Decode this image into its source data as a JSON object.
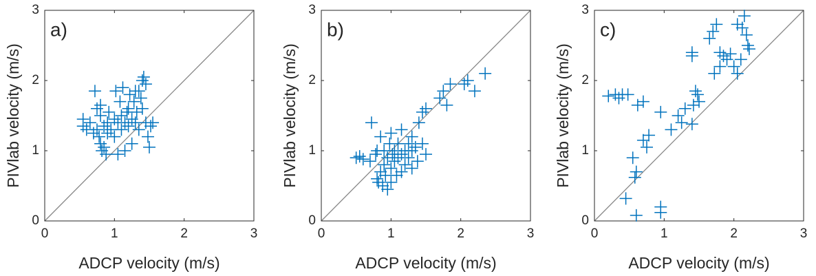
{
  "chart_data": [
    {
      "type": "scatter",
      "panel_label": "a)",
      "x_label": "ADCP velocity (m/s)",
      "y_label": "PIVlab velocity (m/s)",
      "color": "#0072BD",
      "marker": "+",
      "xlim": [
        0,
        3
      ],
      "ylim": [
        0,
        3
      ],
      "xticks": [
        0,
        1,
        2,
        3
      ],
      "yticks": [
        0,
        1,
        2,
        3
      ],
      "x": [
        0.55,
        0.55,
        0.6,
        0.65,
        0.7,
        0.72,
        0.75,
        0.75,
        0.78,
        0.8,
        0.8,
        0.8,
        0.82,
        0.85,
        0.85,
        0.88,
        0.9,
        0.9,
        0.92,
        0.95,
        1.0,
        1.0,
        1.02,
        1.05,
        1.05,
        1.08,
        1.1,
        1.1,
        1.12,
        1.15,
        1.15,
        1.18,
        1.2,
        1.2,
        1.22,
        1.25,
        1.25,
        1.28,
        1.3,
        1.3,
        1.32,
        1.35,
        1.38,
        1.4,
        1.42,
        1.45,
        1.45,
        1.48,
        1.5,
        1.52,
        1.55,
        1.35,
        1.4
      ],
      "y": [
        1.35,
        1.45,
        1.3,
        1.4,
        1.25,
        1.85,
        1.6,
        1.3,
        1.2,
        1.5,
        1.1,
        1.65,
        1.0,
        1.35,
        1.05,
        0.95,
        1.4,
        1.25,
        1.55,
        1.3,
        1.45,
        1.2,
        1.85,
        1.4,
        0.95,
        1.7,
        1.5,
        1.3,
        1.9,
        1.4,
        1.0,
        1.55,
        1.6,
        1.35,
        1.8,
        1.45,
        1.1,
        1.7,
        1.85,
        1.4,
        1.55,
        1.3,
        1.75,
        2.0,
        2.05,
        1.95,
        1.4,
        1.2,
        1.05,
        1.35,
        1.4,
        1.85,
        1.6
      ]
    },
    {
      "type": "scatter",
      "panel_label": "b)",
      "x_label": "ADCP velocity (m/s)",
      "y_label": "PIVlab velocity (m/s)",
      "color": "#0072BD",
      "marker": "+",
      "xlim": [
        0,
        3
      ],
      "ylim": [
        0,
        3
      ],
      "xticks": [
        0,
        1,
        2,
        3
      ],
      "yticks": [
        0,
        1,
        2,
        3
      ],
      "x": [
        0.5,
        0.55,
        0.6,
        0.7,
        0.72,
        0.78,
        0.8,
        0.8,
        0.82,
        0.85,
        0.85,
        0.88,
        0.9,
        0.9,
        0.92,
        0.95,
        0.95,
        0.98,
        1.0,
        1.0,
        1.02,
        1.05,
        1.05,
        1.08,
        1.1,
        1.1,
        1.15,
        1.15,
        1.2,
        1.2,
        1.25,
        1.25,
        1.3,
        1.3,
        1.3,
        1.35,
        1.38,
        1.4,
        1.45,
        1.45,
        1.5,
        1.5,
        1.7,
        1.75,
        1.8,
        1.85,
        2.05,
        2.1,
        2.2,
        2.35,
        1.0,
        1.15
      ],
      "y": [
        0.9,
        0.92,
        0.88,
        0.85,
        1.4,
        0.95,
        1.0,
        0.6,
        0.55,
        0.7,
        1.2,
        0.5,
        0.8,
        1.0,
        0.65,
        0.45,
        0.9,
        1.1,
        1.25,
        0.75,
        0.95,
        1.0,
        0.85,
        0.65,
        1.1,
        0.9,
        1.3,
        0.95,
        1.0,
        0.8,
        1.1,
        0.9,
        1.2,
        1.0,
        0.75,
        1.05,
        0.85,
        1.4,
        1.55,
        1.1,
        1.6,
        0.95,
        1.75,
        1.85,
        1.65,
        1.95,
        1.95,
        2.0,
        1.85,
        2.1,
        0.55,
        0.7
      ]
    },
    {
      "type": "scatter",
      "panel_label": "c)",
      "x_label": "ADCP velocity (m/s)",
      "y_label": "PIVlab velocity (m/s)",
      "color": "#0072BD",
      "marker": "+",
      "xlim": [
        0,
        3
      ],
      "ylim": [
        0,
        3
      ],
      "xticks": [
        0,
        1,
        2,
        3
      ],
      "yticks": [
        0,
        1,
        2,
        3
      ],
      "x": [
        0.2,
        0.3,
        0.35,
        0.4,
        0.48,
        0.45,
        0.55,
        0.58,
        0.6,
        0.6,
        0.62,
        0.7,
        0.7,
        0.75,
        0.78,
        0.95,
        0.95,
        0.95,
        1.1,
        1.2,
        1.25,
        1.3,
        1.4,
        1.4,
        1.42,
        1.45,
        1.48,
        1.5,
        1.65,
        1.7,
        1.72,
        1.75,
        1.8,
        1.8,
        1.85,
        1.9,
        1.95,
        2.0,
        2.05,
        2.1,
        2.12,
        2.15,
        2.18,
        2.2,
        2.22,
        2.05,
        1.4
      ],
      "y": [
        1.78,
        1.8,
        1.75,
        1.8,
        1.8,
        0.32,
        0.9,
        0.62,
        0.08,
        0.7,
        1.65,
        1.7,
        1.15,
        1.05,
        1.22,
        1.55,
        0.2,
        0.12,
        1.3,
        1.5,
        1.4,
        1.6,
        1.38,
        2.4,
        1.65,
        1.85,
        1.8,
        1.7,
        2.6,
        2.7,
        2.1,
        2.8,
        2.2,
        2.4,
        2.35,
        2.3,
        2.38,
        2.2,
        2.8,
        2.3,
        2.75,
        2.92,
        2.65,
        2.5,
        2.45,
        2.1,
        2.35
      ]
    }
  ]
}
